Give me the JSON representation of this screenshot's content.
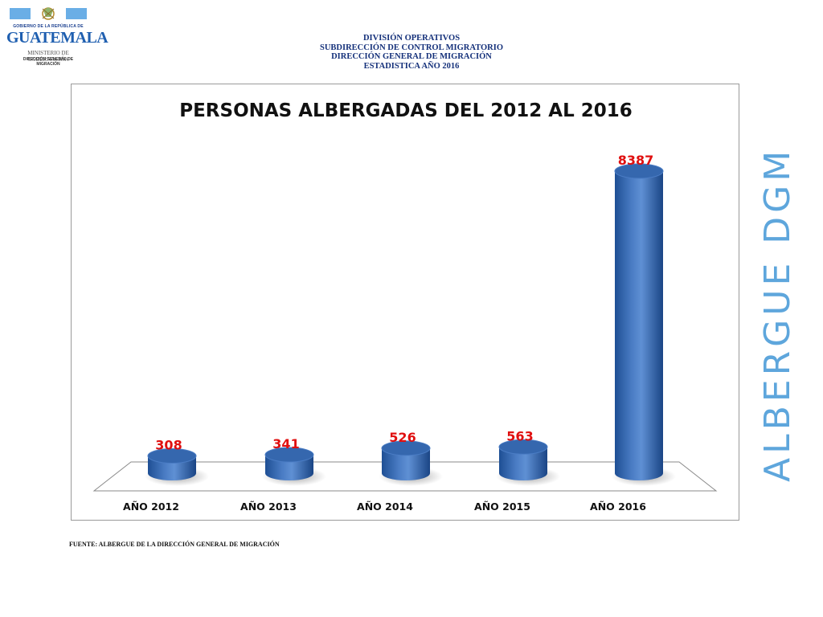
{
  "logo": {
    "top_text": "GOBIERNO DE LA REPÚBLICA DE",
    "name": "GUATEMALA",
    "ministry": "MINISTERIO DE GOBERNACIÓN",
    "directorate_line1": "DIRECCIÓN GENERAL DE",
    "directorate_line2": "MIGRACIÓN"
  },
  "header": {
    "line1": "DIVISIÓN OPERATIVOS",
    "line2": "SUBDIRECCIÓN DE CONTROL MIGRATORIO",
    "line3": "DIRECCIÓN GENERAL DE MIGRACIÓN",
    "line4": "ESTADISTICA AÑO 2016"
  },
  "side_text": "ALBERGUE DGM",
  "source": "FUENTE: ALBERGUE DE LA DIRECCIÓN GENERAL DE MIGRACIÓN",
  "colors": {
    "bar": "#4a7cc4",
    "bar_dark": "#1e4f94",
    "bar_top": "#3567ae",
    "value_label": "#e01010",
    "header_text": "#14307a",
    "side_text": "#5ea6dc"
  },
  "chart_data": {
    "type": "bar",
    "title": "PERSONAS ALBERGADAS DEL 2012 AL 2016",
    "categories": [
      "AÑO 2012",
      "AÑO 2013",
      "AÑO 2014",
      "AÑO 2015",
      "AÑO 2016"
    ],
    "values": [
      308,
      341,
      526,
      563,
      8387
    ],
    "data_labels": [
      "308",
      "341",
      "526",
      "563",
      "8387"
    ],
    "xlabel": "",
    "ylabel": "",
    "ylim": [
      0,
      8387
    ],
    "grid": false,
    "legend": "none",
    "style": "3d-cylinder"
  }
}
